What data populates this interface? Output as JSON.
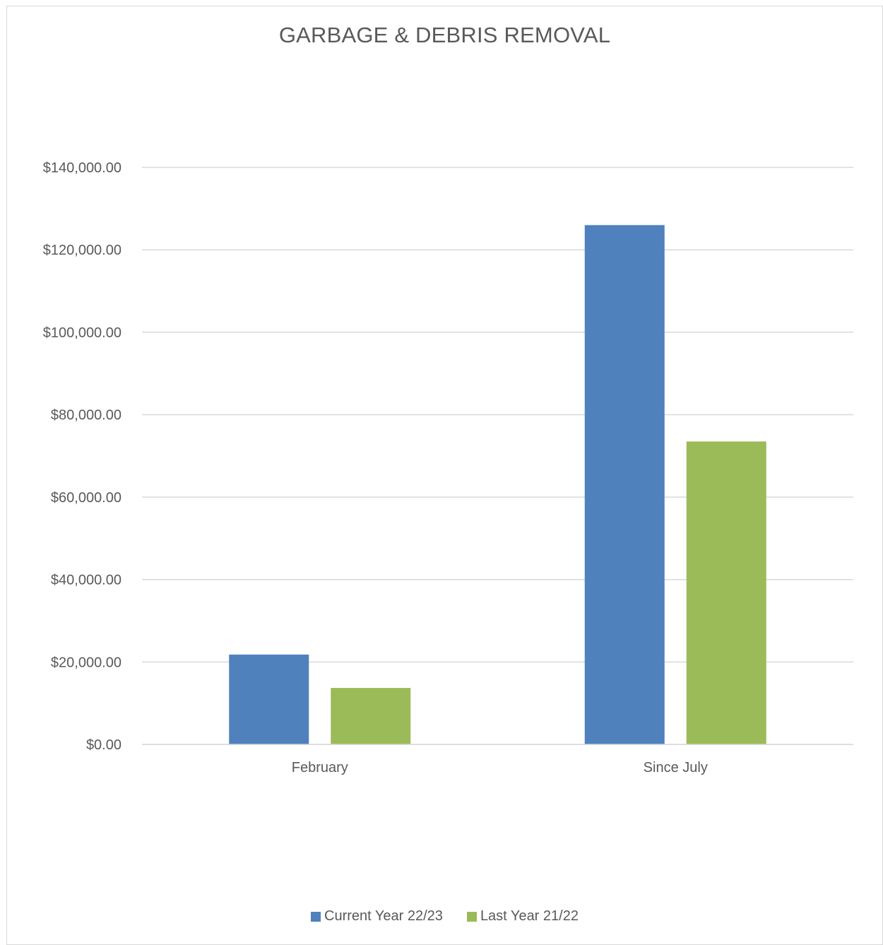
{
  "chart_data": {
    "type": "bar",
    "title": "GARBAGE & DEBRIS REMOVAL",
    "categories": [
      "February",
      "Since July"
    ],
    "series": [
      {
        "name": "Current Year 22/23",
        "color": "#4f81bd",
        "values": [
          21800,
          126000
        ]
      },
      {
        "name": "Last Year 21/22",
        "color": "#9bbb59",
        "values": [
          13700,
          73500
        ]
      }
    ],
    "yticks": [
      {
        "value": 0,
        "label": "$0.00"
      },
      {
        "value": 20000,
        "label": "$20,000.00"
      },
      {
        "value": 40000,
        "label": "$40,000.00"
      },
      {
        "value": 60000,
        "label": "$60,000.00"
      },
      {
        "value": 80000,
        "label": "$80,000.00"
      },
      {
        "value": 100000,
        "label": "$100,000.00"
      },
      {
        "value": 120000,
        "label": "$120,000.00"
      },
      {
        "value": 140000,
        "label": "$140,000.00"
      }
    ],
    "ylim": [
      0,
      140000
    ],
    "grid": true,
    "legend_position": "bottom",
    "xlabel": "",
    "ylabel": ""
  }
}
